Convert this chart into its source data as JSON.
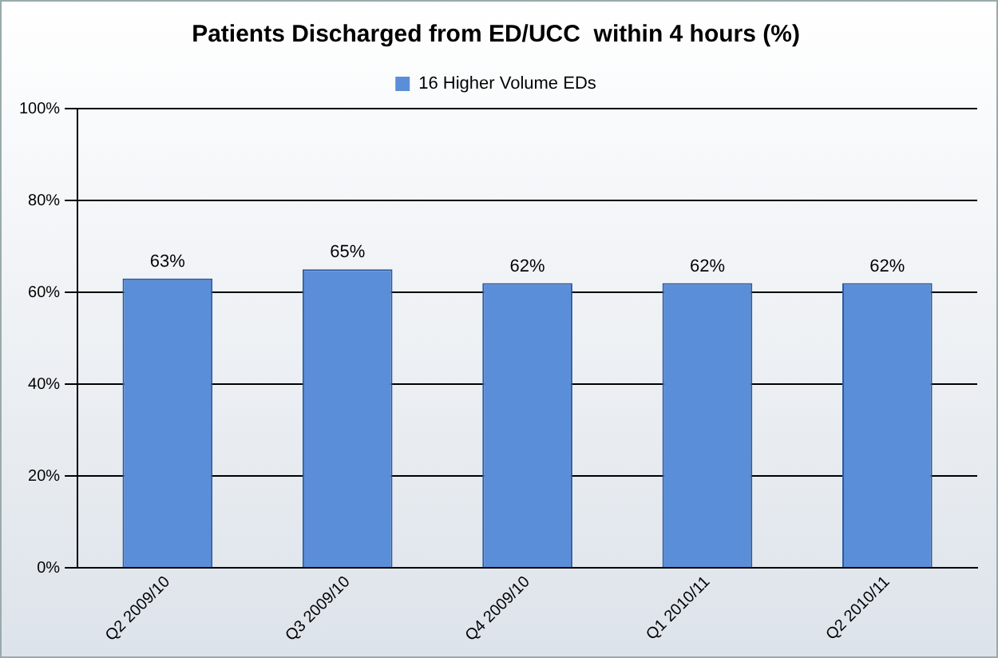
{
  "chart_data": {
    "type": "bar",
    "title": "Patients Discharged from ED/UCC  within 4 hours (%)",
    "categories": [
      "Q2 2009/10",
      "Q3 2009/10",
      "Q4 2009/10",
      "Q1 2010/11",
      "Q2 2010/11"
    ],
    "series": [
      {
        "name": "16 Higher Volume EDs",
        "color": "#5b8ed8",
        "values": [
          63,
          65,
          62,
          62,
          62
        ],
        "value_labels": [
          "63%",
          "65%",
          "62%",
          "62%",
          "62%"
        ]
      }
    ],
    "ylim": [
      0,
      100
    ],
    "yticks": [
      {
        "value": 0,
        "label": "0%"
      },
      {
        "value": 20,
        "label": "20%"
      },
      {
        "value": 40,
        "label": "40%"
      },
      {
        "value": 60,
        "label": "60%"
      },
      {
        "value": 80,
        "label": "80%"
      },
      {
        "value": 100,
        "label": "100%"
      }
    ],
    "grid": "y",
    "legend": "top"
  }
}
